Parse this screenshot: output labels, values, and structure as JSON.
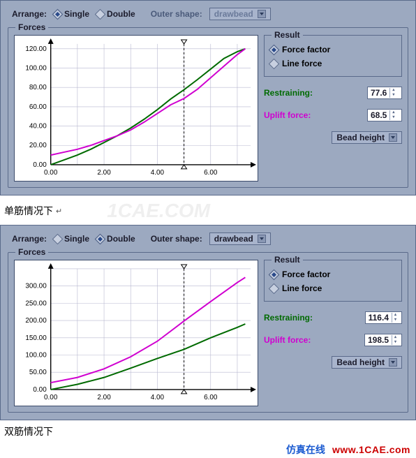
{
  "arrange": {
    "label": "Arrange:",
    "single_label": "Single",
    "double_label": "Double",
    "outer_label": "Outer shape:",
    "outer_value_single": "drawbead",
    "outer_value_double": "drawbead"
  },
  "forces_legend": "Forces",
  "result_legend": "Result",
  "result_force_factor": "Force factor",
  "result_line_force": "Line force",
  "restraining_label": "Restraining:",
  "uplift_label": "Uplift force:",
  "bead_label": "Bead height",
  "caption_single": "单筋情况下",
  "caption_double": "双筋情况下",
  "watermark": "1CAE.COM",
  "footer_cn": "仿真在线",
  "footer_site": "www.1CAE.com",
  "single": {
    "selected": "single",
    "result_selected": "force_factor",
    "restraining": "77.6",
    "uplift": "68.5",
    "chart": {
      "type": "line",
      "xlim": [
        0,
        7.5
      ],
      "ylim": [
        0,
        125
      ],
      "xtick_step": 2,
      "ytick_step": 20,
      "xticks": [
        "0.00",
        "2.00",
        "4.00",
        "6.00"
      ],
      "yticks": [
        "0.00",
        "20.00",
        "40.00",
        "60.00",
        "80.00",
        "100.00",
        "120.00"
      ],
      "background": "#ffffff",
      "grid_color": "#b8b8d0",
      "axis_color": "#000000",
      "marker_x": 5.0,
      "series": [
        {
          "name": "restraining",
          "color": "#006a00",
          "width": 2,
          "points": [
            [
              0,
              0
            ],
            [
              0.5,
              5
            ],
            [
              1,
              10
            ],
            [
              1.5,
              16
            ],
            [
              2,
              23
            ],
            [
              2.5,
              30
            ],
            [
              3,
              38
            ],
            [
              3.5,
              47
            ],
            [
              4,
              57
            ],
            [
              4.5,
              68
            ],
            [
              5,
              77.6
            ],
            [
              5.5,
              88
            ],
            [
              6,
              99
            ],
            [
              6.5,
              110
            ],
            [
              7,
              117
            ],
            [
              7.3,
              120
            ]
          ]
        },
        {
          "name": "uplift",
          "color": "#d000d0",
          "width": 2,
          "points": [
            [
              0,
              10
            ],
            [
              0.5,
              13
            ],
            [
              1,
              16
            ],
            [
              1.5,
              20
            ],
            [
              2,
              25
            ],
            [
              2.5,
              30
            ],
            [
              3,
              36
            ],
            [
              3.5,
              44
            ],
            [
              4,
              53
            ],
            [
              4.5,
              62
            ],
            [
              5,
              68.5
            ],
            [
              5.5,
              78
            ],
            [
              6,
              90
            ],
            [
              6.5,
              102
            ],
            [
              7,
              114
            ],
            [
              7.3,
              120
            ]
          ]
        }
      ]
    }
  },
  "double": {
    "selected": "double",
    "result_selected": "force_factor",
    "restraining": "116.4",
    "uplift": "198.5",
    "chart": {
      "type": "line",
      "xlim": [
        0,
        7.5
      ],
      "ylim": [
        0,
        350
      ],
      "xtick_step": 2,
      "ytick_step": 50,
      "xticks": [
        "0.00",
        "2.00",
        "4.00",
        "6.00"
      ],
      "yticks": [
        "0.00",
        "50.00",
        "100.00",
        "150.00",
        "200.00",
        "250.00",
        "300.00"
      ],
      "background": "#ffffff",
      "grid_color": "#b8b8d0",
      "axis_color": "#000000",
      "marker_x": 5.0,
      "series": [
        {
          "name": "restraining",
          "color": "#006a00",
          "width": 2,
          "points": [
            [
              0,
              0
            ],
            [
              1,
              15
            ],
            [
              2,
              35
            ],
            [
              3,
              62
            ],
            [
              4,
              90
            ],
            [
              5,
              116.4
            ],
            [
              6,
              150
            ],
            [
              7,
              180
            ],
            [
              7.3,
              190
            ]
          ]
        },
        {
          "name": "uplift",
          "color": "#d000d0",
          "width": 2,
          "points": [
            [
              0,
              20
            ],
            [
              1,
              35
            ],
            [
              2,
              60
            ],
            [
              3,
              95
            ],
            [
              4,
              140
            ],
            [
              5,
              198.5
            ],
            [
              6,
              255
            ],
            [
              7,
              310
            ],
            [
              7.3,
              325
            ]
          ]
        }
      ]
    }
  }
}
